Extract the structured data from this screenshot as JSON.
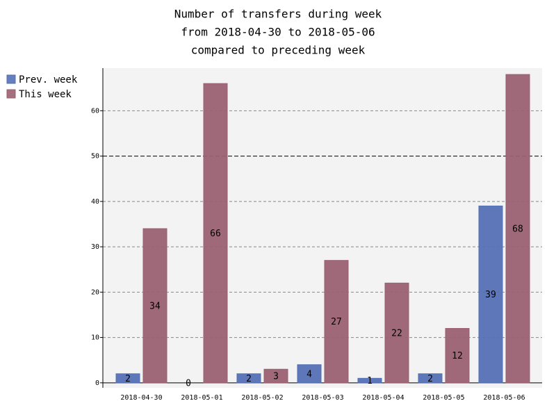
{
  "chart_data": {
    "type": "bar",
    "title": [
      "Number of transfers during week",
      "from 2018-04-30 to 2018-05-06",
      "compared to preceding week"
    ],
    "categories": [
      "2018-04-30",
      "2018-05-01",
      "2018-05-02",
      "2018-05-03",
      "2018-05-04",
      "2018-05-05",
      "2018-05-06"
    ],
    "series": [
      {
        "name": "Prev. week",
        "color": "#5470b5",
        "values": [
          2,
          0,
          2,
          4,
          1,
          2,
          39
        ]
      },
      {
        "name": "This week",
        "color": "#9a6172",
        "values": [
          34,
          66,
          3,
          27,
          22,
          12,
          68
        ]
      }
    ],
    "ylim": [
      -1.1,
      69.4
    ],
    "yticks": [
      0,
      10,
      20,
      30,
      40,
      50,
      60
    ],
    "major_ytick": 50,
    "grid": true,
    "legend": "top-left"
  }
}
